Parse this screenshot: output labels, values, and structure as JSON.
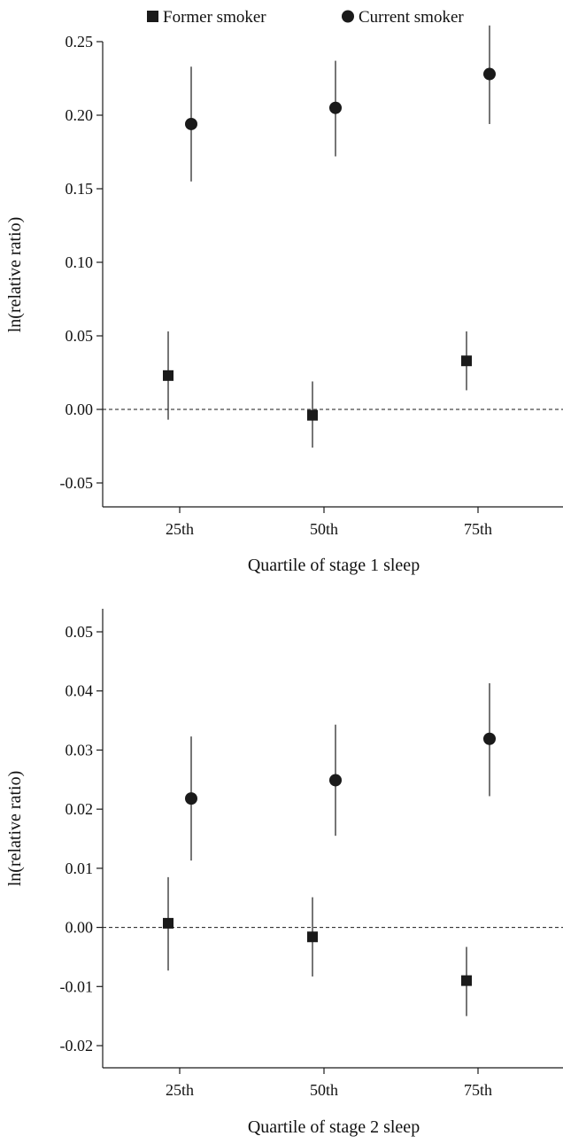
{
  "legend": {
    "former_label": "Former smoker",
    "current_label": "Current smoker"
  },
  "colors": {
    "ink": "#1a1a1a"
  },
  "chart_data": [
    {
      "type": "scatter",
      "subtype": "point-with-error-bars",
      "xlabel": "Quartile of stage 1 sleep",
      "ylabel": "ln(relative ratio)",
      "categories": [
        "25th",
        "50th",
        "75th"
      ],
      "ylim": [
        -0.07,
        0.265
      ],
      "yticks": [
        -0.05,
        0.0,
        0.05,
        0.1,
        0.15,
        0.2,
        0.25
      ],
      "ytick_labels": [
        "-0.05",
        "0.00",
        "0.05",
        "0.10",
        "0.15",
        "0.20",
        "0.25"
      ],
      "reference_line": 0,
      "legend_position": "top",
      "series": [
        {
          "name": "Former smoker",
          "marker": "square",
          "values": [
            0.023,
            -0.004,
            0.033
          ],
          "lower": [
            -0.007,
            -0.026,
            0.013
          ],
          "upper": [
            0.053,
            0.019,
            0.053
          ]
        },
        {
          "name": "Current smoker",
          "marker": "circle",
          "values": [
            0.194,
            0.205,
            0.228
          ],
          "lower": [
            0.155,
            0.172,
            0.194
          ],
          "upper": [
            0.233,
            0.237,
            0.261
          ]
        }
      ]
    },
    {
      "type": "scatter",
      "subtype": "point-with-error-bars",
      "xlabel": "Quartile of stage 2 sleep",
      "ylabel": "ln(relative ratio)",
      "categories": [
        "25th",
        "50th",
        "75th"
      ],
      "ylim": [
        -0.025,
        0.054
      ],
      "yticks": [
        -0.02,
        -0.01,
        0.0,
        0.01,
        0.02,
        0.03,
        0.04,
        0.05
      ],
      "ytick_labels": [
        "-0.02",
        "-0.01",
        "0.00",
        "0.01",
        "0.02",
        "0.03",
        "0.04",
        "0.05"
      ],
      "reference_line": 0,
      "series": [
        {
          "name": "Former smoker",
          "marker": "square",
          "values": [
            0.0007,
            -0.0016,
            -0.009
          ],
          "lower": [
            -0.0073,
            -0.0083,
            -0.015
          ],
          "upper": [
            0.0085,
            0.0051,
            -0.0033
          ]
        },
        {
          "name": "Current smoker",
          "marker": "circle",
          "values": [
            0.0218,
            0.0249,
            0.0319
          ],
          "lower": [
            0.0113,
            0.0155,
            0.0222
          ],
          "upper": [
            0.0323,
            0.0343,
            0.0413
          ]
        }
      ]
    }
  ]
}
